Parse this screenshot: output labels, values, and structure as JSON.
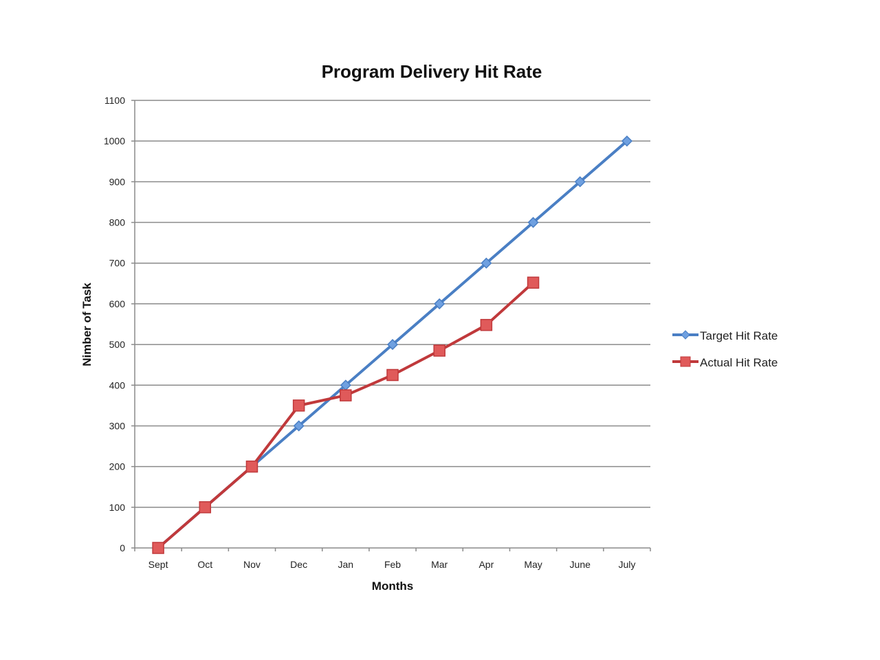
{
  "chart_data": {
    "type": "line",
    "title": "Program Delivery Hit Rate",
    "xlabel": "Months",
    "ylabel": "Nimber of Task",
    "categories": [
      "Sept",
      "Oct",
      "Nov",
      "Dec",
      "Jan",
      "Feb",
      "Mar",
      "Apr",
      "May",
      "June",
      "July"
    ],
    "ylim": [
      0,
      1100
    ],
    "yticks": [
      0,
      100,
      200,
      300,
      400,
      500,
      600,
      700,
      800,
      900,
      1000,
      1100
    ],
    "grid": true,
    "legend_position": "right",
    "series": [
      {
        "name": "Target Hit Rate",
        "color": "#4a7fc4",
        "marker": "diamond",
        "values": [
          0,
          100,
          200,
          300,
          400,
          500,
          600,
          700,
          800,
          900,
          1000
        ]
      },
      {
        "name": "Actual Hit Rate",
        "color": "#c0393b",
        "marker": "square",
        "values": [
          0,
          100,
          200,
          350,
          375,
          425,
          485,
          548,
          652,
          null,
          null
        ]
      }
    ]
  }
}
